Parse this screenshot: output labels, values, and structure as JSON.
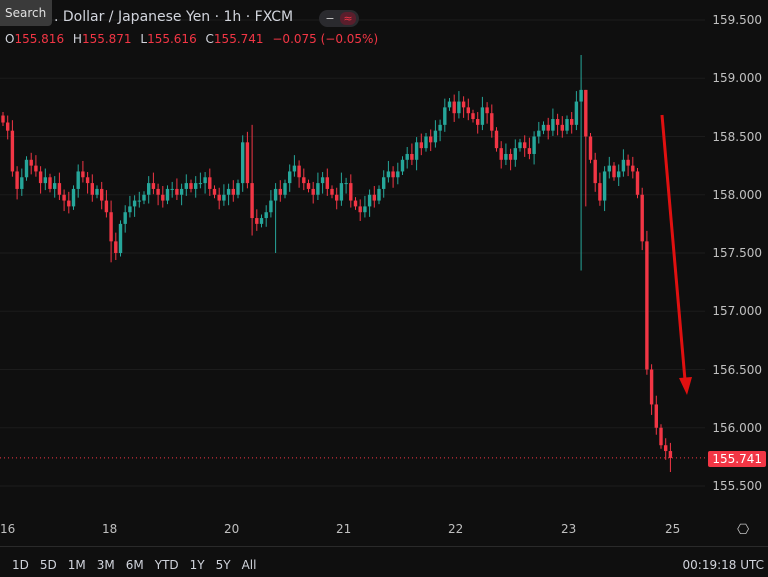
{
  "header": {
    "search_label": "Search",
    "title": ". Dollar / Japanese Yen · 1h · FXCM",
    "toggle_a": "−",
    "toggle_b": "≈",
    "ohlc": {
      "o_label": "O",
      "o": "155.816",
      "h_label": "H",
      "h": "155.871",
      "l_label": "L",
      "l": "155.616",
      "c_label": "C",
      "c": "155.741",
      "change": "−0.075 (−0.05%)"
    }
  },
  "price_axis": [
    "159.500",
    "159.000",
    "158.500",
    "158.000",
    "157.500",
    "157.000",
    "156.500",
    "156.000",
    "155.500"
  ],
  "current_price": "155.741",
  "time_axis": [
    "16",
    "18",
    "20",
    "21",
    "22",
    "23",
    "25"
  ],
  "ranges": [
    "1D",
    "5D",
    "1M",
    "3M",
    "6M",
    "YTD",
    "1Y",
    "5Y",
    "All"
  ],
  "clock": "00:19:18 UTC",
  "colors": {
    "up": "#26a69a",
    "down": "#f23645",
    "arrow": "#e01010"
  },
  "chart_data": {
    "type": "candlestick",
    "ylim": [
      155.5,
      159.5
    ],
    "start_open": 158.68,
    "closes": [
      158.62,
      158.55,
      158.2,
      158.05,
      158.15,
      158.3,
      158.25,
      158.2,
      158.1,
      158.15,
      158.05,
      158.1,
      158.0,
      157.95,
      157.9,
      158.05,
      158.2,
      158.15,
      158.1,
      158.0,
      158.05,
      157.95,
      157.85,
      157.6,
      157.5,
      157.75,
      157.85,
      157.9,
      157.95,
      157.95,
      158.0,
      158.1,
      158.05,
      158.0,
      157.95,
      158.05,
      158.05,
      158.0,
      158.05,
      158.1,
      158.05,
      158.1,
      158.1,
      158.15,
      158.05,
      158.0,
      157.95,
      158.0,
      158.05,
      158.0,
      158.1,
      158.45,
      158.1,
      157.8,
      157.75,
      157.8,
      157.85,
      157.95,
      158.05,
      158.0,
      158.1,
      158.2,
      158.25,
      158.15,
      158.1,
      158.05,
      158.0,
      158.1,
      158.15,
      158.05,
      158.0,
      157.95,
      158.1,
      158.1,
      157.95,
      157.9,
      157.85,
      157.9,
      158.0,
      157.95,
      158.05,
      158.15,
      158.2,
      158.15,
      158.2,
      158.3,
      158.35,
      158.3,
      158.45,
      158.4,
      158.5,
      158.45,
      158.55,
      158.6,
      158.75,
      158.8,
      158.7,
      158.8,
      158.75,
      158.7,
      158.65,
      158.6,
      158.75,
      158.7,
      158.55,
      158.4,
      158.3,
      158.35,
      158.3,
      158.4,
      158.45,
      158.4,
      158.35,
      158.5,
      158.55,
      158.6,
      158.55,
      158.65,
      158.6,
      158.55,
      158.65,
      158.6,
      158.8,
      158.9,
      158.5,
      158.3,
      158.1,
      157.95,
      158.2,
      158.25,
      158.15,
      158.2,
      158.3,
      158.25,
      158.2,
      158.0,
      157.6,
      156.5,
      156.2,
      156.0,
      155.85,
      155.8,
      155.741
    ],
    "wick_overrides": {
      "23": [
        157.95,
        157.42
      ],
      "53": [
        158.6,
        157.65
      ],
      "58": [
        158.1,
        157.5
      ],
      "123": [
        159.2,
        157.35
      ],
      "124": [
        158.9,
        157.9
      ],
      "142": [
        155.87,
        155.62
      ]
    }
  }
}
